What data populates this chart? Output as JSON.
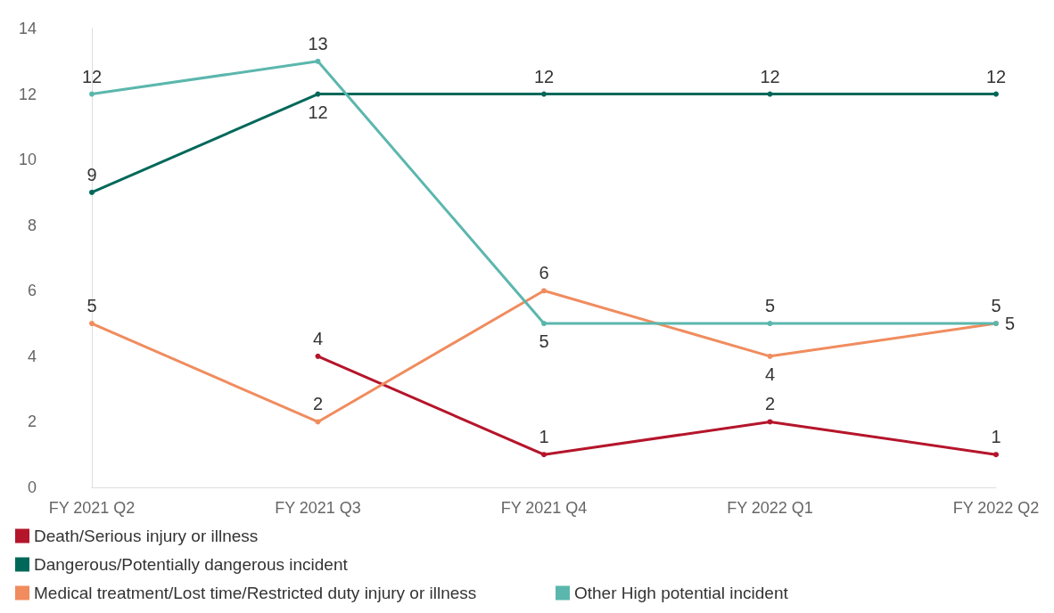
{
  "chart_data": {
    "type": "line",
    "categories": [
      "FY 2021 Q2",
      "FY 2021 Q3",
      "FY 2021 Q4",
      "FY 2022 Q1",
      "FY 2022 Q2"
    ],
    "series": [
      {
        "name": "Death/Serious injury or illness",
        "color": "#b5152b",
        "values": [
          null,
          4,
          1,
          2,
          1
        ]
      },
      {
        "name": "Dangerous/Potentially dangerous incident",
        "color": "#00685a",
        "values": [
          9,
          12,
          12,
          12,
          12
        ]
      },
      {
        "name": "Medical treatment/Lost time/Restricted duty injury or illness",
        "color": "#f08c5e",
        "values": [
          5,
          2,
          6,
          4,
          5
        ]
      },
      {
        "name": "Other High potential incident",
        "color": "#5bb7ad",
        "values": [
          12,
          13,
          5,
          5,
          5
        ]
      }
    ],
    "ylim": [
      0,
      14
    ],
    "yticks": [
      0,
      2,
      4,
      6,
      8,
      10,
      12,
      14
    ],
    "grid": false,
    "legend": "bottom left",
    "marker": "circle",
    "line_style": "solid",
    "data_labels": true
  }
}
